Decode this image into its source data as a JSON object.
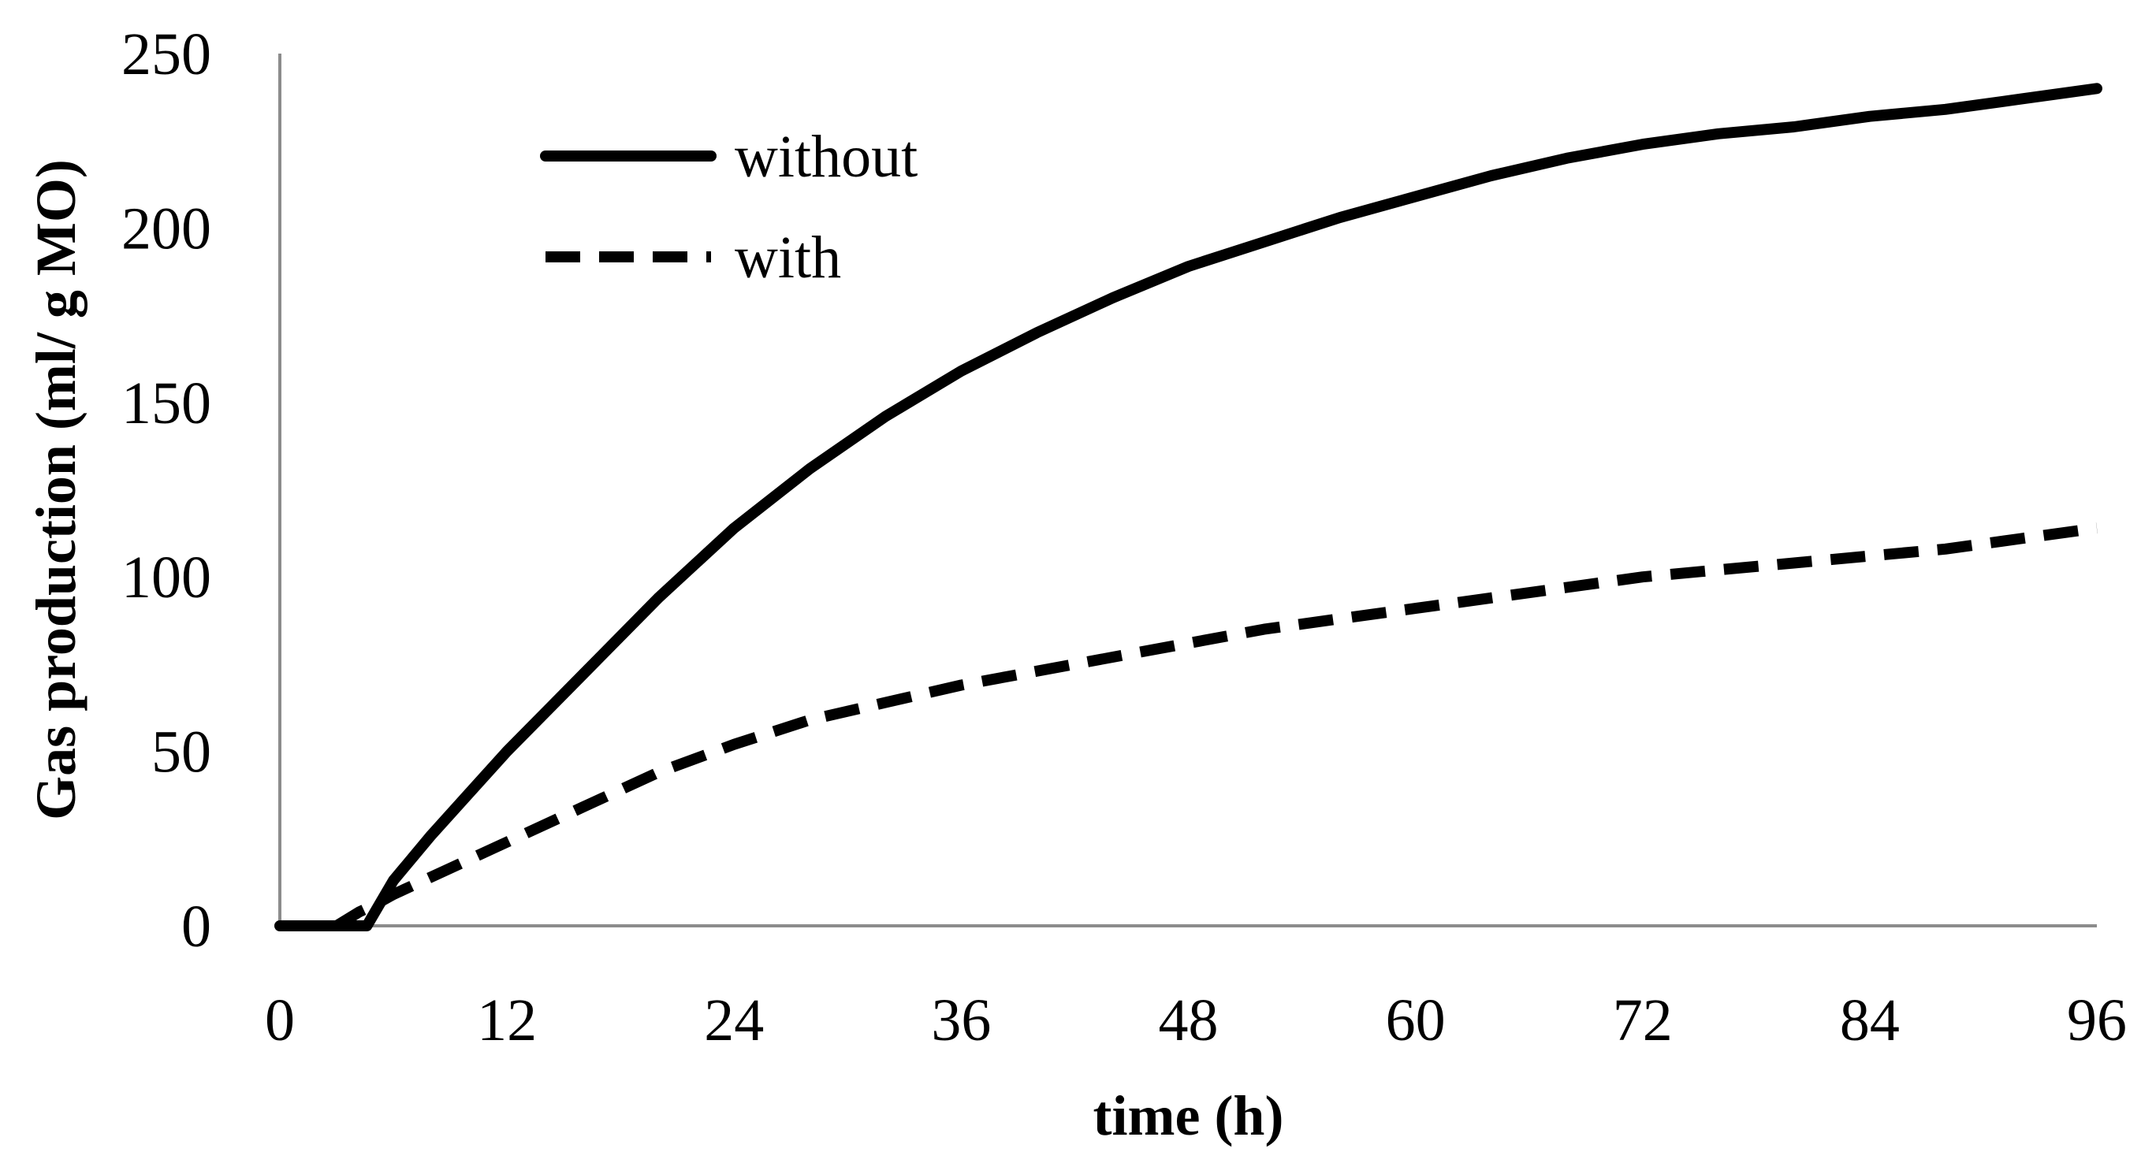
{
  "chart_data": {
    "type": "line",
    "title": "",
    "xlabel": "time (h)",
    "ylabel": "Gas production (ml/ g MO)",
    "xlim": [
      0,
      96
    ],
    "ylim": [
      0,
      250
    ],
    "xticks": [
      0,
      12,
      24,
      36,
      48,
      60,
      72,
      84,
      96
    ],
    "yticks": [
      0,
      50,
      100,
      150,
      200,
      250
    ],
    "grid": false,
    "legend_position": "top-left",
    "series": [
      {
        "name": "without",
        "style": "solid",
        "color": "#000000",
        "x": [
          0,
          3,
          4.6,
          6,
          8,
          10,
          12,
          16,
          20,
          24,
          28,
          32,
          36,
          40,
          44,
          48,
          52,
          56,
          60,
          64,
          68,
          72,
          76,
          80,
          84,
          88,
          92,
          96
        ],
        "y": [
          0,
          0,
          0,
          13,
          26,
          38,
          50,
          72,
          94,
          114,
          131,
          146,
          159,
          170,
          180,
          189,
          196,
          203,
          209,
          215,
          220,
          224,
          227,
          229,
          232,
          234,
          237,
          240
        ]
      },
      {
        "name": "with",
        "style": "dashed",
        "color": "#000000",
        "x": [
          0,
          3,
          4.2,
          5,
          6,
          8,
          12,
          16,
          20,
          24,
          28,
          32,
          36,
          40,
          44,
          48,
          52,
          56,
          60,
          64,
          68,
          72,
          76,
          80,
          84,
          88,
          92,
          96
        ],
        "y": [
          0,
          0,
          4,
          6,
          9,
          14,
          24,
          34,
          44,
          52,
          59,
          64,
          69,
          73,
          77,
          81,
          85,
          88,
          91,
          94,
          97,
          100,
          102,
          104,
          106,
          108,
          111,
          114
        ]
      }
    ]
  }
}
